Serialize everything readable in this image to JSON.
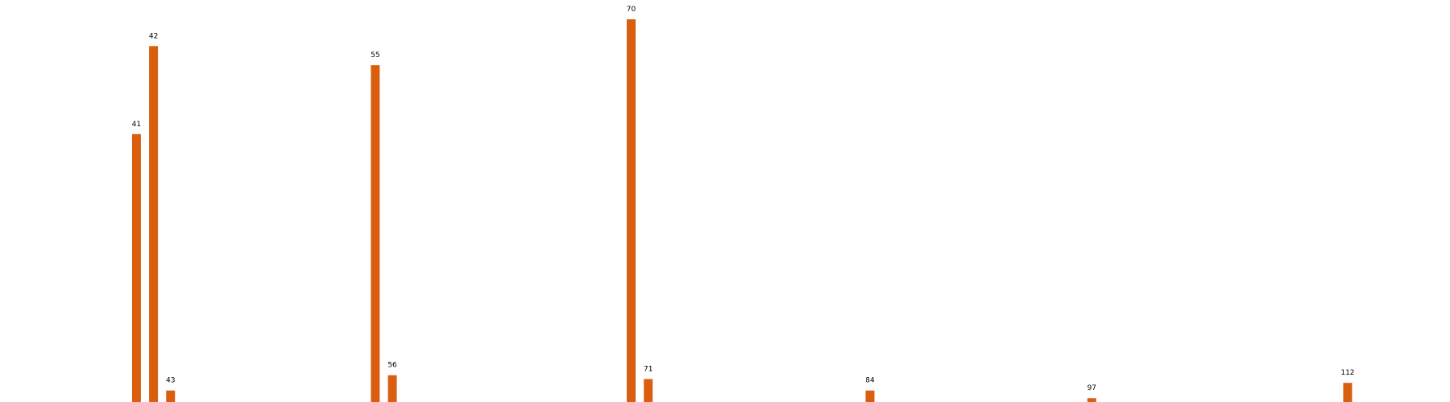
{
  "chart_data": {
    "type": "bar",
    "title": "",
    "xlabel": "",
    "ylabel": "",
    "grid": false,
    "bar_color": "#d95f0e",
    "xlim": [
      33,
      118
    ],
    "ylim": [
      0,
      100
    ],
    "bars": [
      {
        "x": 41,
        "label": "41",
        "value": 70
      },
      {
        "x": 42,
        "label": "42",
        "value": 93
      },
      {
        "x": 43,
        "label": "43",
        "value": 3
      },
      {
        "x": 55,
        "label": "55",
        "value": 88
      },
      {
        "x": 56,
        "label": "56",
        "value": 7
      },
      {
        "x": 70,
        "label": "70",
        "value": 100
      },
      {
        "x": 71,
        "label": "71",
        "value": 6
      },
      {
        "x": 84,
        "label": "84",
        "value": 3
      },
      {
        "x": 97,
        "label": "97",
        "value": 1
      },
      {
        "x": 112,
        "label": "112",
        "value": 5
      }
    ]
  }
}
